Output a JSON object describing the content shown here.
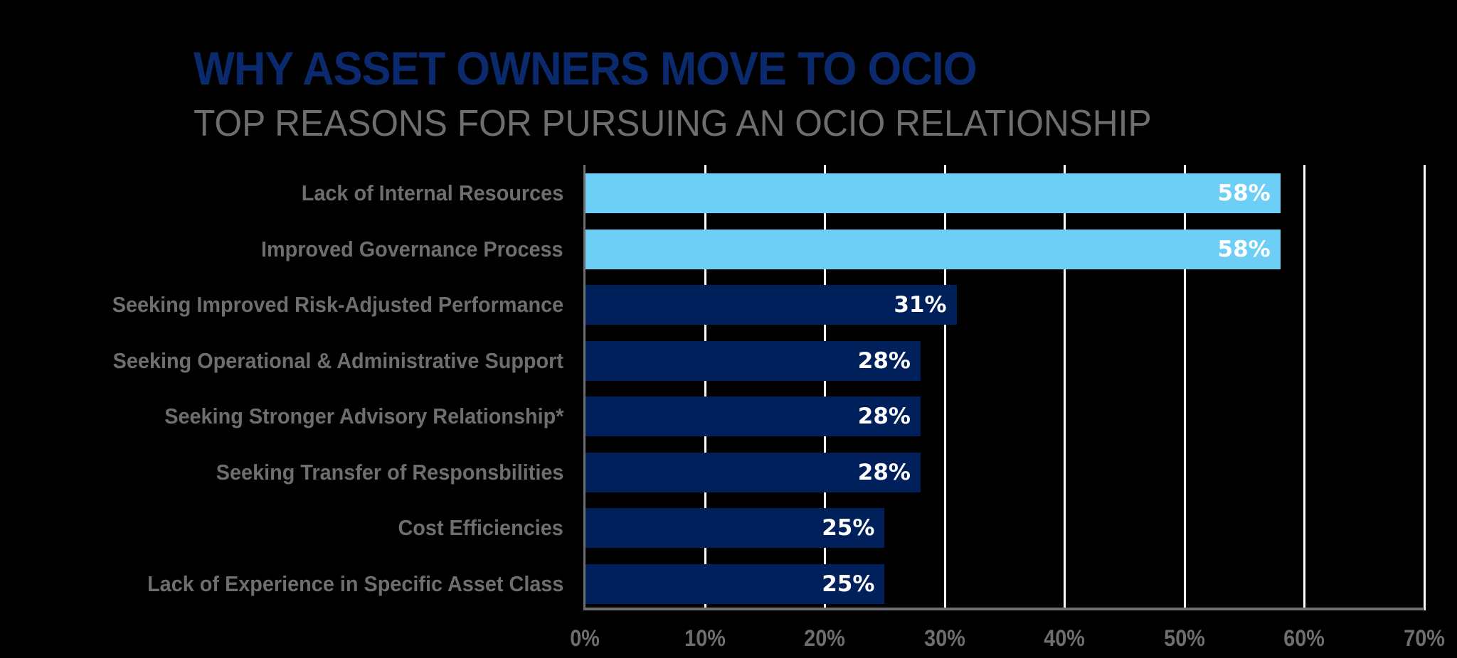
{
  "header": {
    "title": "WHY ASSET OWNERS MOVE TO OCIO",
    "subtitle": "TOP REASONS FOR PURSUING AN OCIO RELATIONSHIP"
  },
  "colors": {
    "background": "#000000",
    "title": "#0b2a6e",
    "subtitle_and_labels": "#6e6e6e",
    "bar_highlight": "#6dcff6",
    "bar_default": "#00205b",
    "gridline": "#ffffff",
    "value_label": "#ffffff"
  },
  "chart_data": {
    "type": "bar",
    "orientation": "horizontal",
    "title": "WHY ASSET OWNERS MOVE TO OCIO",
    "subtitle": "TOP REASONS FOR PURSUING AN OCIO RELATIONSHIP",
    "xlabel": "",
    "ylabel": "",
    "xlim": [
      0,
      70
    ],
    "grid": true,
    "legend": null,
    "categories": [
      "Lack of Internal Resources",
      "Improved Governance Process",
      "Seeking Improved Risk-Adjusted Performance",
      "Seeking Operational & Administrative Support",
      "Seeking Stronger Advisory Relationship*",
      "Seeking Transfer of Responsbilities",
      "Cost Efficiencies",
      "Lack of Experience in Specific Asset Class"
    ],
    "values": [
      58,
      58,
      31,
      28,
      28,
      28,
      25,
      25
    ],
    "value_labels": [
      "58%",
      "58%",
      "31%",
      "28%",
      "28%",
      "28%",
      "25%",
      "25%"
    ],
    "highlighted": [
      true,
      true,
      false,
      false,
      false,
      false,
      false,
      false
    ],
    "x_ticks": [
      "0%",
      "10%",
      "20%",
      "30%",
      "40%",
      "50%",
      "60%",
      "70%"
    ]
  }
}
